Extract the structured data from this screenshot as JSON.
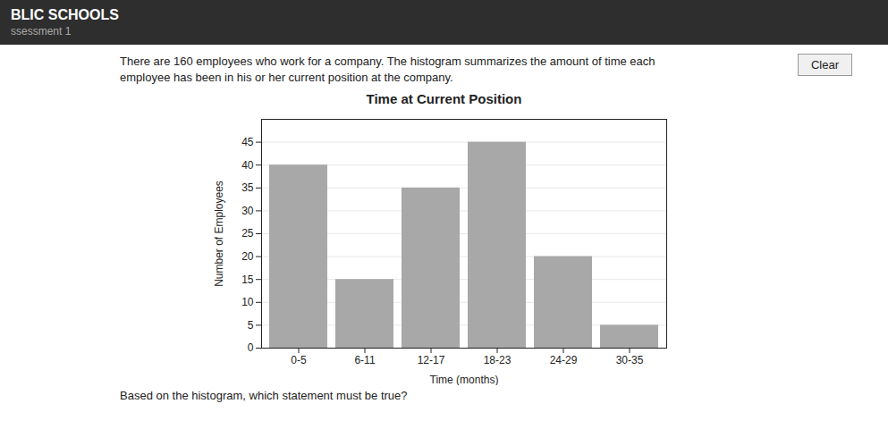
{
  "chart_data": {
    "type": "bar",
    "title": "Time at Current Position",
    "xlabel": "Time (months)",
    "ylabel": "Number of Employees",
    "categories": [
      "0-5",
      "6-11",
      "12-17",
      "18-23",
      "24-29",
      "30-35"
    ],
    "values": [
      40,
      15,
      35,
      45,
      20,
      5
    ],
    "color": "#a8a8a8",
    "ylim": [
      0,
      50
    ],
    "yticks": [
      0,
      5,
      10,
      15,
      20,
      25,
      30,
      35,
      40,
      45
    ],
    "grid": true,
    "annotations": [
      "BLIC SCHOOLS",
      "ssessment 1",
      "Clear",
      "There are 160 employees who work for a company. The histogram summarizes the amount of time each",
      "employee has been in his or her current position at the company.",
      "Based on the histogram, which statement must be true?"
    ]
  }
}
